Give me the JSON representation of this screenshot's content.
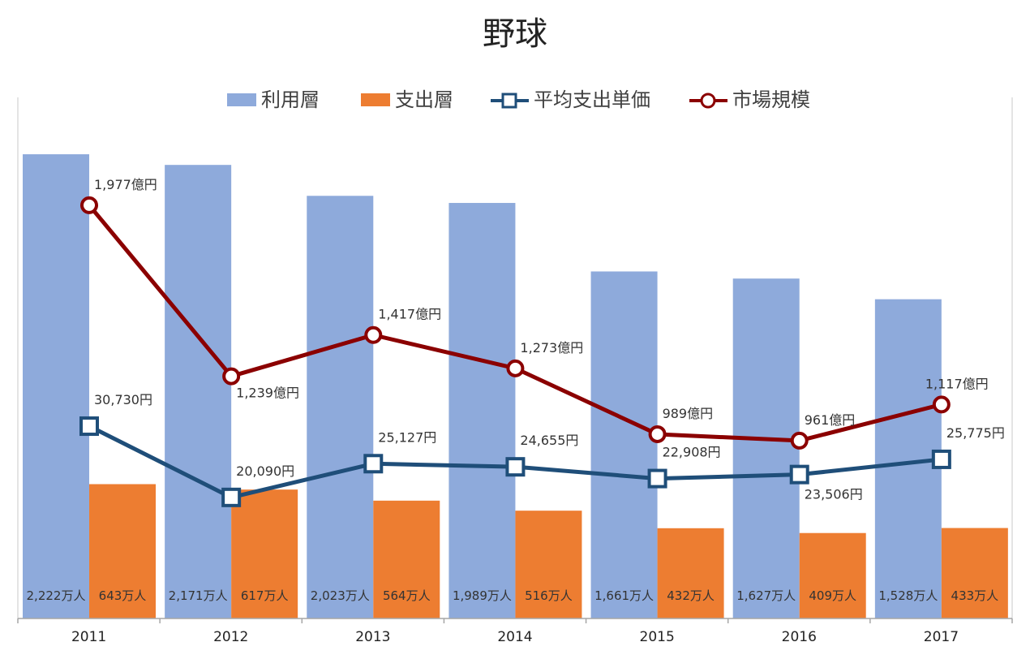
{
  "chart_data": {
    "type": "bar",
    "title": "野球",
    "categories": [
      "2011",
      "2012",
      "2013",
      "2014",
      "2015",
      "2016",
      "2017"
    ],
    "legend_position": "top",
    "grid": false,
    "series": [
      {
        "name": "利用層",
        "kind": "bar",
        "color": "#8eaadb",
        "values": [
          2222,
          2171,
          2023,
          1989,
          1661,
          1627,
          1528
        ],
        "labels": [
          "2,222万人",
          "2,171万人",
          "2,023万人",
          "1,989万人",
          "1,661万人",
          "1,627万人",
          "1,528万人"
        ]
      },
      {
        "name": "支出層",
        "kind": "bar",
        "color": "#ed7d31",
        "values": [
          643,
          617,
          564,
          516,
          432,
          409,
          433
        ],
        "labels": [
          "643万人",
          "617万人",
          "564万人",
          "516万人",
          "432万人",
          "409万人",
          "433万人"
        ]
      },
      {
        "name": "平均支出単価",
        "kind": "line",
        "color": "#1f4e79",
        "marker": "square",
        "values": [
          30730,
          20090,
          25127,
          24655,
          22908,
          23506,
          25775
        ],
        "labels": [
          "30,730円",
          "20,090円",
          "25,127円",
          "24,655円",
          "22,908円",
          "23,506円",
          "25,775円"
        ]
      },
      {
        "name": "市場規模",
        "kind": "line",
        "color": "#8b0000",
        "marker": "circle",
        "values": [
          1977,
          1239,
          1417,
          1273,
          989,
          961,
          1117
        ],
        "labels": [
          "1,977億円",
          "1,239億円",
          "1,417億円",
          "1,273億円",
          "989億円",
          "961億円",
          "1,117億円"
        ]
      }
    ]
  }
}
